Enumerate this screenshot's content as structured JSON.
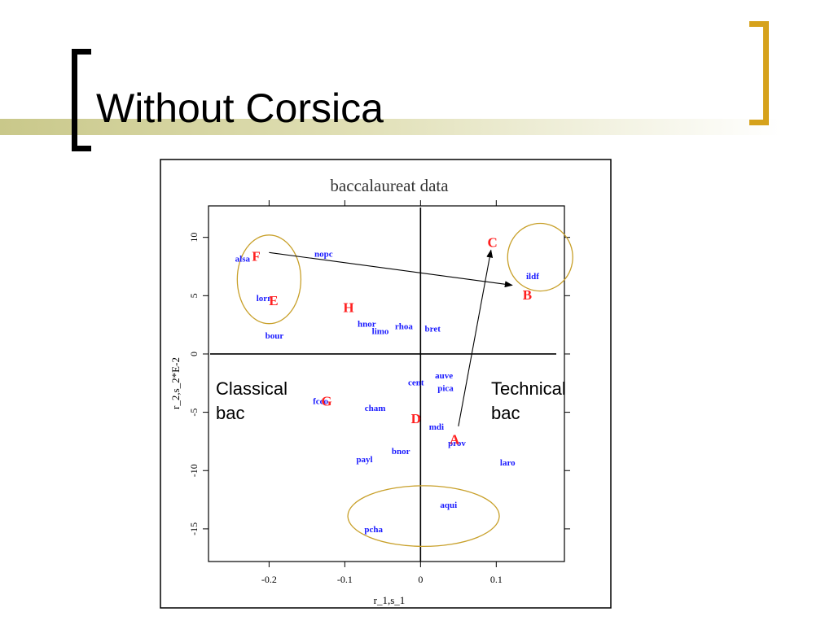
{
  "slide": {
    "title": "Without Corsica"
  },
  "colors": {
    "accent": "#d6a21c",
    "band": "#c9c88a",
    "region_code": "#1a1aff",
    "cluster": "#ff2020",
    "ellipse": "#c8a02a"
  },
  "annotations": {
    "classical": "Classical\nbac",
    "technical": "Technical\nbac"
  },
  "chart_data": {
    "type": "scatter",
    "title": "baccalaureat data",
    "xlabel": "r_1,s_1",
    "ylabel": "r_2,s_2*E-2",
    "xlim": [
      -0.28,
      0.19
    ],
    "ylim": [
      -17.8,
      12.7
    ],
    "xticks": [
      -0.2,
      -0.1,
      0,
      0.1
    ],
    "xtick_labels": [
      "-0.2",
      "-0.1",
      "0",
      "0.1"
    ],
    "yticks": [
      -15,
      -10,
      -5,
      0,
      5,
      10
    ],
    "ytick_labels": [
      "-15",
      "-10",
      "-5",
      "0",
      "5",
      "10"
    ],
    "zero_lines": true,
    "grid": false,
    "regions": [
      {
        "label": "alsa",
        "x": -0.235,
        "y": 8.2
      },
      {
        "label": "nopc",
        "x": -0.128,
        "y": 8.6
      },
      {
        "label": "lorr",
        "x": -0.207,
        "y": 4.8
      },
      {
        "label": "bour",
        "x": -0.193,
        "y": 1.6
      },
      {
        "label": "hnor",
        "x": -0.071,
        "y": 2.6
      },
      {
        "label": "limo",
        "x": -0.053,
        "y": 2.0
      },
      {
        "label": "rhoa",
        "x": -0.022,
        "y": 2.4
      },
      {
        "label": "bret",
        "x": 0.016,
        "y": 2.2
      },
      {
        "label": "ildf",
        "x": 0.148,
        "y": 6.7
      },
      {
        "label": "auve",
        "x": 0.031,
        "y": -1.8
      },
      {
        "label": "cent",
        "x": -0.006,
        "y": -2.4
      },
      {
        "label": "pica",
        "x": 0.033,
        "y": -2.9
      },
      {
        "label": "fcco",
        "x": -0.132,
        "y": -4.0
      },
      {
        "label": "cham",
        "x": -0.06,
        "y": -4.6
      },
      {
        "label": "mdi",
        "x": 0.021,
        "y": -6.2
      },
      {
        "label": "prov",
        "x": 0.048,
        "y": -7.6
      },
      {
        "label": "bnor",
        "x": -0.026,
        "y": -8.3
      },
      {
        "label": "payl",
        "x": -0.074,
        "y": -9.0
      },
      {
        "label": "laro",
        "x": 0.115,
        "y": -9.3
      },
      {
        "label": "aqui",
        "x": 0.037,
        "y": -12.9
      },
      {
        "label": "pcha",
        "x": -0.062,
        "y": -15.0
      }
    ],
    "clusters": [
      {
        "label": "F",
        "x": -0.217,
        "y": 8.4
      },
      {
        "label": "E",
        "x": -0.194,
        "y": 4.6
      },
      {
        "label": "H",
        "x": -0.095,
        "y": 4.0
      },
      {
        "label": "C",
        "x": 0.095,
        "y": 9.6
      },
      {
        "label": "B",
        "x": 0.141,
        "y": 5.1
      },
      {
        "label": "G",
        "x": -0.124,
        "y": -4.0
      },
      {
        "label": "D",
        "x": -0.006,
        "y": -5.5
      },
      {
        "label": "A",
        "x": 0.045,
        "y": -7.3
      }
    ],
    "arrows": [
      {
        "from": [
          -0.2,
          8.7
        ],
        "to": [
          0.121,
          5.9
        ]
      },
      {
        "from": [
          0.05,
          -6.2
        ],
        "to": [
          0.093,
          8.9
        ]
      }
    ],
    "ellipses": [
      {
        "cx": -0.2,
        "cy": 6.4,
        "rx": 0.042,
        "ry": 3.8
      },
      {
        "cx": 0.158,
        "cy": 8.3,
        "rx": 0.043,
        "ry": 2.9
      },
      {
        "cx": 0.004,
        "cy": -13.9,
        "rx": 0.1,
        "ry": 2.6
      }
    ]
  }
}
